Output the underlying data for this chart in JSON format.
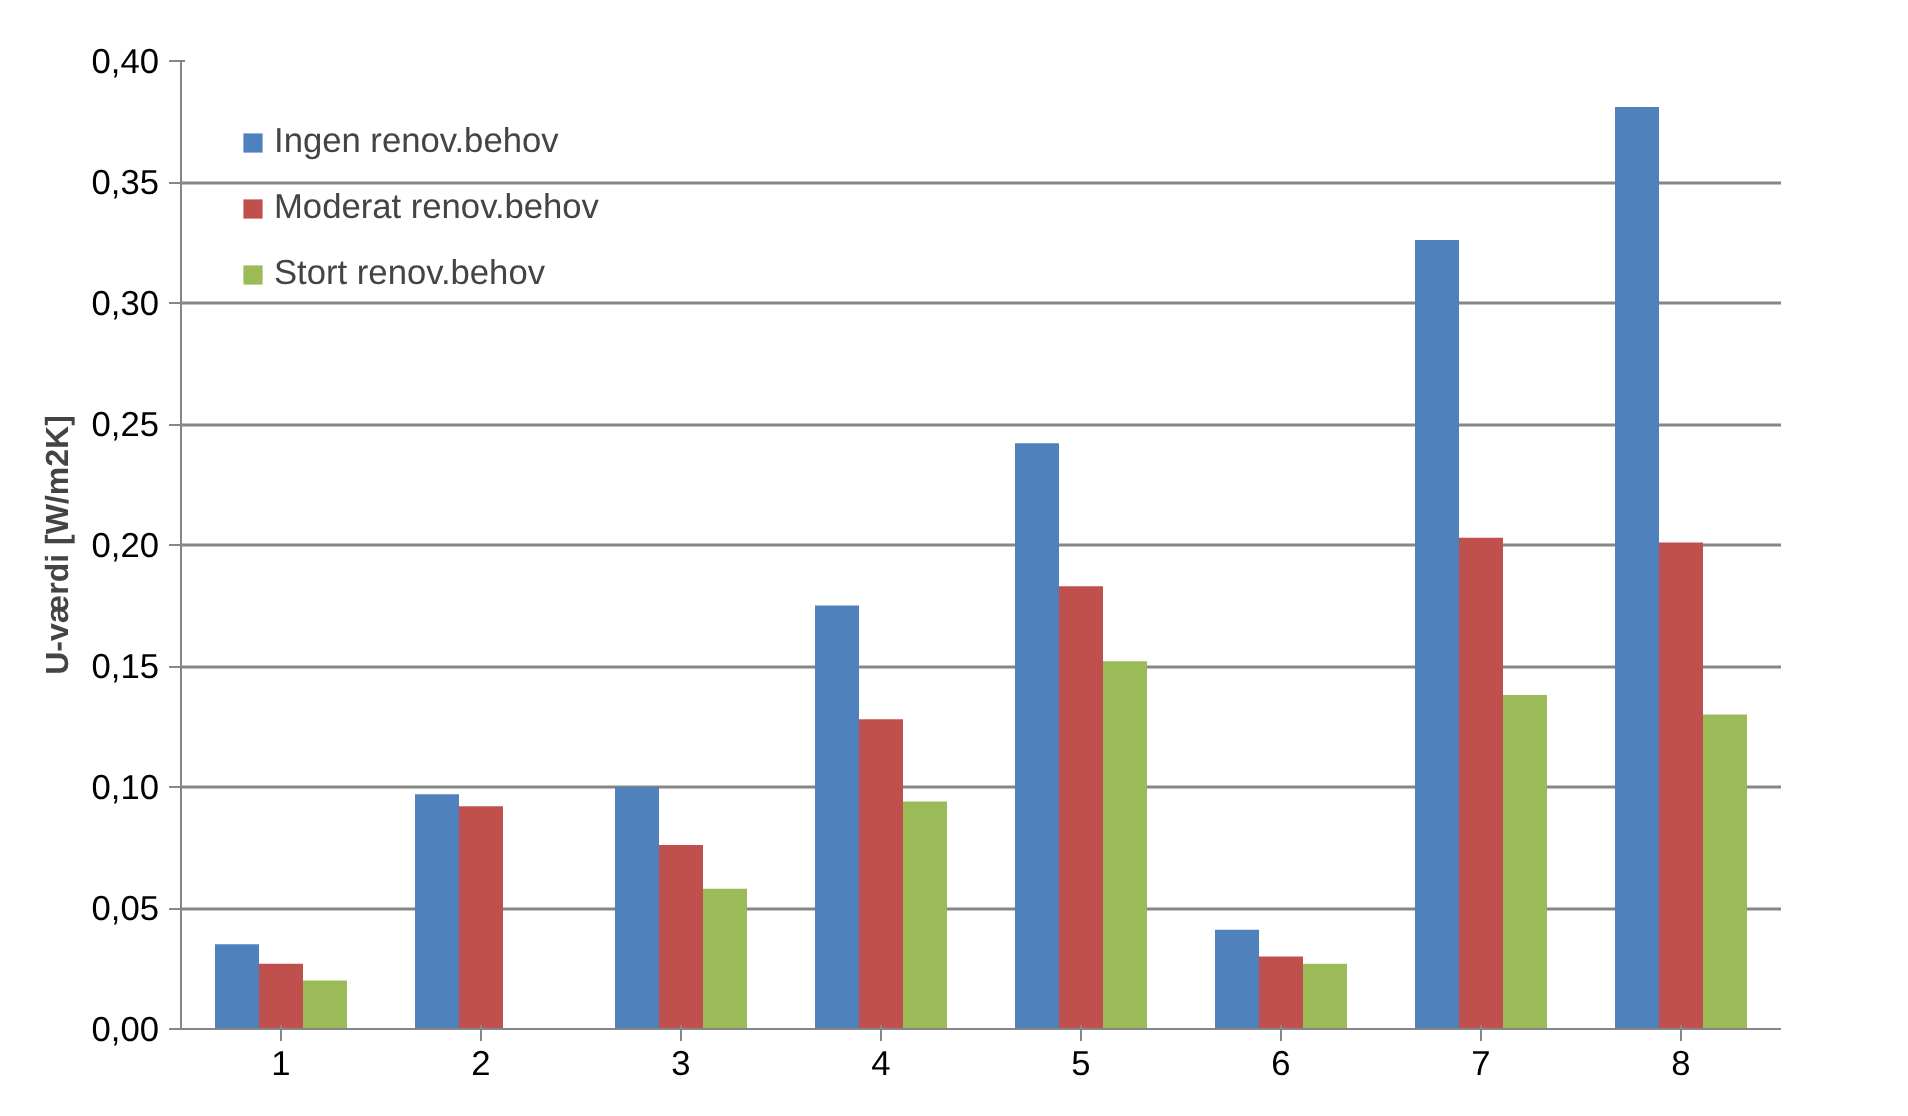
{
  "chart_data": {
    "type": "bar",
    "ylabel": "U-værdi [W/m2K]",
    "categories": [
      "1",
      "2",
      "3",
      "4",
      "5",
      "6",
      "7",
      "8"
    ],
    "series": [
      {
        "name": "Ingen renov.behov",
        "color": "#4f81bd",
        "values": [
          0.035,
          0.097,
          0.1,
          0.175,
          0.242,
          0.041,
          0.326,
          0.381
        ]
      },
      {
        "name": "Moderat renov.behov",
        "color": "#c0504d",
        "values": [
          0.027,
          0.092,
          0.076,
          0.128,
          0.183,
          0.03,
          0.203,
          0.201
        ]
      },
      {
        "name": "Stort renov.behov",
        "color": "#9bbb59",
        "values": [
          0.02,
          null,
          0.058,
          0.094,
          0.152,
          0.027,
          0.138,
          0.13
        ]
      }
    ],
    "ylim": [
      0,
      0.4
    ],
    "yticks": [
      {
        "value": 0,
        "label": "0,00"
      },
      {
        "value": 0.05,
        "label": "0,05"
      },
      {
        "value": 0.1,
        "label": "0,10"
      },
      {
        "value": 0.15,
        "label": "0,15"
      },
      {
        "value": 0.2,
        "label": "0,20"
      },
      {
        "value": 0.25,
        "label": "0,25"
      },
      {
        "value": 0.3,
        "label": "0,30"
      },
      {
        "value": 0.35,
        "label": "0,35"
      },
      {
        "value": 0.4,
        "label": "0,40"
      }
    ],
    "grid": "y",
    "legend": "top left"
  }
}
